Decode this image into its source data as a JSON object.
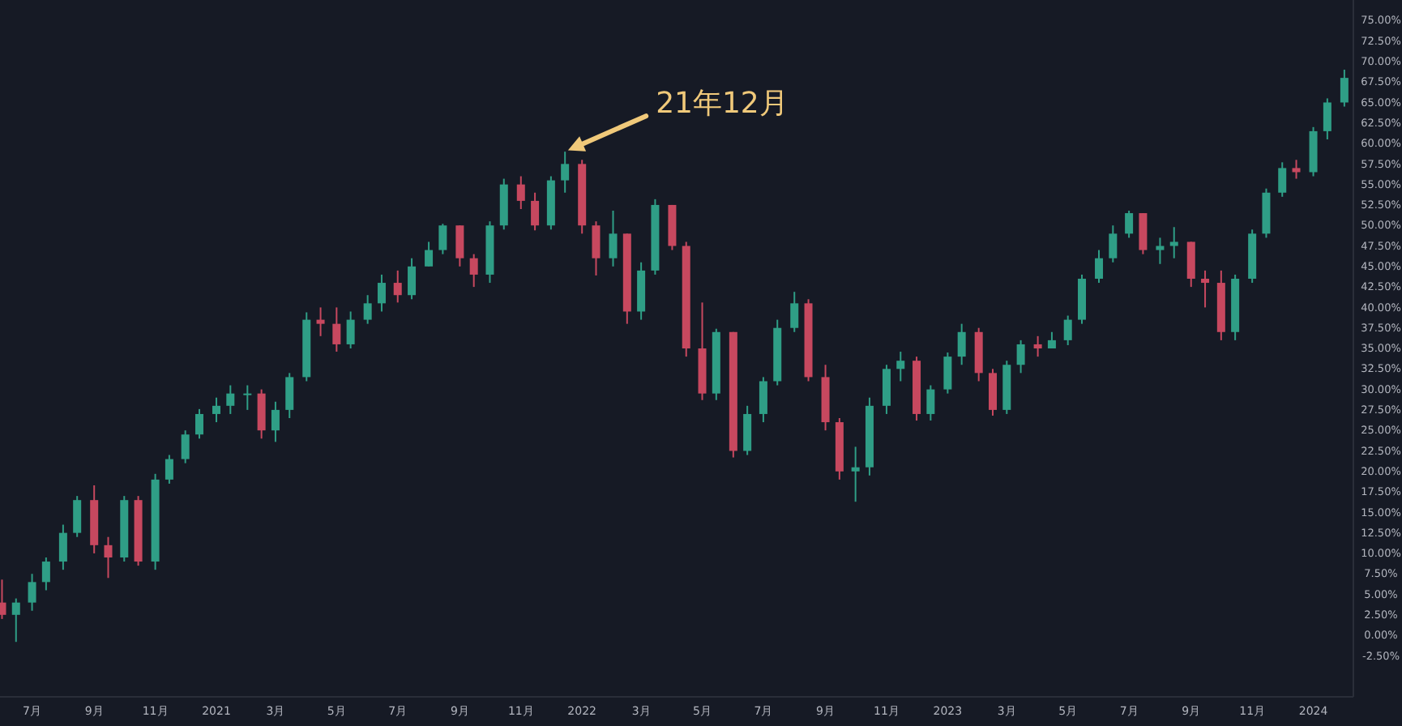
{
  "chart_data": {
    "type": "candlestick",
    "x": [
      "2020-06-01",
      "2020-06-15",
      "2020-07-01",
      "2020-07-15",
      "2020-08-01",
      "2020-08-15",
      "2020-09-01",
      "2020-09-15",
      "2020-10-01",
      "2020-10-15",
      "2020-11-01",
      "2020-11-15",
      "2020-12-01",
      "2020-12-15",
      "2021-01-01",
      "2021-01-15",
      "2021-02-01",
      "2021-02-15",
      "2021-03-01",
      "2021-03-15",
      "2021-04-01",
      "2021-04-15",
      "2021-05-01",
      "2021-05-15",
      "2021-06-01",
      "2021-06-15",
      "2021-07-01",
      "2021-07-15",
      "2021-08-01",
      "2021-08-15",
      "2021-09-01",
      "2021-09-15",
      "2021-10-01",
      "2021-10-15",
      "2021-11-01",
      "2021-11-15",
      "2021-12-01",
      "2021-12-15",
      "2022-01-01",
      "2022-01-15",
      "2022-02-01",
      "2022-02-15",
      "2022-03-01",
      "2022-03-15",
      "2022-04-01",
      "2022-04-15",
      "2022-05-01",
      "2022-05-15",
      "2022-06-01",
      "2022-06-15",
      "2022-07-01",
      "2022-07-15",
      "2022-08-01",
      "2022-08-15",
      "2022-09-01",
      "2022-09-15",
      "2022-10-01",
      "2022-10-15",
      "2022-11-01",
      "2022-11-15",
      "2022-12-01",
      "2022-12-15",
      "2023-01-01",
      "2023-01-15",
      "2023-02-01",
      "2023-02-15",
      "2023-03-01",
      "2023-03-15",
      "2023-04-01",
      "2023-04-15",
      "2023-05-01",
      "2023-05-15",
      "2023-06-01",
      "2023-06-15",
      "2023-07-01",
      "2023-07-15",
      "2023-08-01",
      "2023-08-15",
      "2023-09-01",
      "2023-09-15",
      "2023-10-01",
      "2023-10-15",
      "2023-11-01",
      "2023-11-15",
      "2023-12-01",
      "2023-12-15",
      "2024-01-01",
      "2024-01-15",
      "2024-02-01"
    ],
    "ohlc": [
      [
        4,
        6.8,
        2,
        2.5
      ],
      [
        2.5,
        4.5,
        -0.8,
        4
      ],
      [
        4,
        7.5,
        3,
        6.5
      ],
      [
        6.5,
        9.5,
        5.5,
        9
      ],
      [
        9,
        13.5,
        8,
        12.5
      ],
      [
        12.5,
        17,
        12,
        16.5
      ],
      [
        16.5,
        18.3,
        10,
        11
      ],
      [
        11,
        12,
        7,
        9.5
      ],
      [
        9.5,
        17,
        9,
        16.5
      ],
      [
        16.5,
        17,
        8.5,
        9
      ],
      [
        9,
        19.7,
        8,
        19
      ],
      [
        19,
        22,
        18.5,
        21.5
      ],
      [
        21.5,
        25,
        21,
        24.5
      ],
      [
        24.5,
        27.6,
        24,
        27
      ],
      [
        27,
        29,
        26,
        28
      ],
      [
        28,
        30.5,
        27,
        29.5
      ],
      [
        29.5,
        30.5,
        27.5,
        29.5
      ],
      [
        29.5,
        30,
        24,
        25
      ],
      [
        25,
        28.5,
        23.6,
        27.5
      ],
      [
        27.5,
        32,
        26.5,
        31.5
      ],
      [
        31.5,
        39.4,
        31,
        38.5
      ],
      [
        38.5,
        40,
        36.5,
        38
      ],
      [
        38,
        40,
        34.6,
        35.5
      ],
      [
        35.5,
        39.5,
        35,
        38.5
      ],
      [
        38.5,
        41.5,
        38,
        40.5
      ],
      [
        40.5,
        44,
        39.5,
        43
      ],
      [
        43,
        44.5,
        40.6,
        41.5
      ],
      [
        41.5,
        46,
        41,
        45
      ],
      [
        45,
        48,
        45,
        47
      ],
      [
        47,
        50.2,
        46.5,
        50
      ],
      [
        50,
        50,
        45,
        46
      ],
      [
        46,
        46.5,
        42.5,
        44
      ],
      [
        44,
        50.5,
        43,
        50
      ],
      [
        50,
        55.7,
        49.5,
        55
      ],
      [
        55,
        56,
        52,
        53
      ],
      [
        53,
        54,
        49.4,
        50
      ],
      [
        50,
        56,
        49.5,
        55.5
      ],
      [
        55.5,
        59,
        54,
        57.5
      ],
      [
        57.5,
        58,
        49,
        50
      ],
      [
        50,
        50.5,
        43.9,
        46
      ],
      [
        46,
        51.8,
        45,
        49
      ],
      [
        49,
        49,
        38,
        39.5
      ],
      [
        39.5,
        45.5,
        38.5,
        44.5
      ],
      [
        44.5,
        53.2,
        44,
        52.5
      ],
      [
        52.5,
        52.5,
        47,
        47.5
      ],
      [
        47.5,
        48,
        34,
        35
      ],
      [
        35,
        40.6,
        28.7,
        29.5
      ],
      [
        29.5,
        37.4,
        28.7,
        37
      ],
      [
        37,
        37,
        21.7,
        22.5
      ],
      [
        22.5,
        28,
        22,
        27
      ],
      [
        27,
        31.5,
        26,
        31
      ],
      [
        31,
        38.5,
        30.5,
        37.5
      ],
      [
        37.5,
        41.9,
        37,
        40.5
      ],
      [
        40.5,
        41,
        31,
        31.5
      ],
      [
        31.5,
        33,
        25,
        26
      ],
      [
        26,
        26.5,
        19,
        20
      ],
      [
        20,
        23,
        16.3,
        20.5
      ],
      [
        20.5,
        29,
        19.5,
        28
      ],
      [
        28,
        33,
        27,
        32.5
      ],
      [
        32.5,
        34.6,
        31,
        33.5
      ],
      [
        33.5,
        34,
        26.2,
        27
      ],
      [
        27,
        30.5,
        26.2,
        30
      ],
      [
        30,
        34.5,
        29.5,
        34
      ],
      [
        34,
        38,
        33,
        37
      ],
      [
        37,
        37.5,
        31,
        32
      ],
      [
        32,
        32.5,
        26.8,
        27.5
      ],
      [
        27.5,
        33.5,
        27,
        33
      ],
      [
        33,
        36,
        32,
        35.5
      ],
      [
        35.5,
        36.5,
        34,
        35
      ],
      [
        35,
        37,
        35,
        36
      ],
      [
        36,
        39,
        35.4,
        38.5
      ],
      [
        38.5,
        44,
        38,
        43.5
      ],
      [
        43.5,
        47,
        43,
        46
      ],
      [
        46,
        50,
        45.5,
        49
      ],
      [
        49,
        51.8,
        48.5,
        51.5
      ],
      [
        51.5,
        51.5,
        46.5,
        47
      ],
      [
        47,
        48.5,
        45.3,
        47.5
      ],
      [
        47.5,
        49.8,
        46,
        48
      ],
      [
        48,
        48,
        42.5,
        43.5
      ],
      [
        43.5,
        44.5,
        40,
        43
      ],
      [
        43,
        44.5,
        36,
        37
      ],
      [
        37,
        44,
        36,
        43.5
      ],
      [
        43.5,
        49.5,
        43,
        49
      ],
      [
        49,
        54.5,
        48.5,
        54
      ],
      [
        54,
        57.7,
        53.5,
        57
      ],
      [
        57,
        58,
        55.7,
        56.5
      ],
      [
        56.5,
        62,
        56,
        61.5
      ],
      [
        61.5,
        65.5,
        60.5,
        65
      ],
      [
        65,
        69,
        64.5,
        68
      ]
    ],
    "xlim": [
      "2020-05-30",
      "2024-02-10"
    ],
    "xticks": [
      {
        "value": "2020-07-01",
        "label": "7月"
      },
      {
        "value": "2020-09-01",
        "label": "9月"
      },
      {
        "value": "2020-11-01",
        "label": "11月"
      },
      {
        "value": "2021-01-01",
        "label": "2021"
      },
      {
        "value": "2021-03-01",
        "label": "3月"
      },
      {
        "value": "2021-05-01",
        "label": "5月"
      },
      {
        "value": "2021-07-01",
        "label": "7月"
      },
      {
        "value": "2021-09-01",
        "label": "9月"
      },
      {
        "value": "2021-11-01",
        "label": "11月"
      },
      {
        "value": "2022-01-01",
        "label": "2022"
      },
      {
        "value": "2022-03-01",
        "label": "3月"
      },
      {
        "value": "2022-05-01",
        "label": "5月"
      },
      {
        "value": "2022-07-01",
        "label": "7月"
      },
      {
        "value": "2022-09-01",
        "label": "9月"
      },
      {
        "value": "2022-11-01",
        "label": "11月"
      },
      {
        "value": "2023-01-01",
        "label": "2023"
      },
      {
        "value": "2023-03-01",
        "label": "3月"
      },
      {
        "value": "2023-05-01",
        "label": "5月"
      },
      {
        "value": "2023-07-01",
        "label": "7月"
      },
      {
        "value": "2023-09-01",
        "label": "9月"
      },
      {
        "value": "2023-11-01",
        "label": "11月"
      },
      {
        "value": "2024-01-01",
        "label": "2024"
      }
    ],
    "ylim": [
      -7.5,
      77.5
    ],
    "yticks": [
      {
        "value": -2.5,
        "label": "-2.50%"
      },
      {
        "value": 0,
        "label": "0.00%"
      },
      {
        "value": 2.5,
        "label": "2.50%"
      },
      {
        "value": 5,
        "label": "5.00%"
      },
      {
        "value": 7.5,
        "label": "7.50%"
      },
      {
        "value": 10,
        "label": "10.00%"
      },
      {
        "value": 12.5,
        "label": "12.50%"
      },
      {
        "value": 15,
        "label": "15.00%"
      },
      {
        "value": 17.5,
        "label": "17.50%"
      },
      {
        "value": 20,
        "label": "20.00%"
      },
      {
        "value": 22.5,
        "label": "22.50%"
      },
      {
        "value": 25,
        "label": "25.00%"
      },
      {
        "value": 27.5,
        "label": "27.50%"
      },
      {
        "value": 30,
        "label": "30.00%"
      },
      {
        "value": 32.5,
        "label": "32.50%"
      },
      {
        "value": 35,
        "label": "35.00%"
      },
      {
        "value": 37.5,
        "label": "37.50%"
      },
      {
        "value": 40,
        "label": "40.00%"
      },
      {
        "value": 42.5,
        "label": "42.50%"
      },
      {
        "value": 45,
        "label": "45.00%"
      },
      {
        "value": 47.5,
        "label": "47.50%"
      },
      {
        "value": 50,
        "label": "50.00%"
      },
      {
        "value": 52.5,
        "label": "52.50%"
      },
      {
        "value": 55,
        "label": "55.00%"
      },
      {
        "value": 57.5,
        "label": "57.50%"
      },
      {
        "value": 60,
        "label": "60.00%"
      },
      {
        "value": 62.5,
        "label": "62.50%"
      },
      {
        "value": 65,
        "label": "65.00%"
      },
      {
        "value": 67.5,
        "label": "67.50%"
      },
      {
        "value": 70,
        "label": "70.00%"
      },
      {
        "value": 72.5,
        "label": "72.50%"
      },
      {
        "value": 75,
        "label": "75.00%"
      }
    ],
    "annotations": [
      {
        "text": "21年12月",
        "x": "2021-12-15",
        "y": 59
      }
    ]
  }
}
